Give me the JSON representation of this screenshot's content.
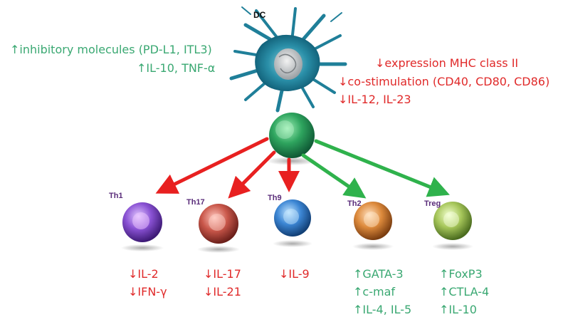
{
  "dc": {
    "label": "DC",
    "left_effects": [
      "↑inhibitory molecules (PD-L1, ITL3)",
      "↑IL-10, TNF-α"
    ],
    "right_effects": [
      "↓expression MHC class II",
      "↓co-stimulation (CD40, CD80, CD86)",
      "↓IL-12, IL-23"
    ]
  },
  "subsets": [
    {
      "name": "Th1",
      "effects": [
        "↓IL-2",
        "↓IFN-γ"
      ],
      "trend": "down"
    },
    {
      "name": "Th17",
      "effects": [
        "↓IL-17",
        "↓IL-21"
      ],
      "trend": "down"
    },
    {
      "name": "Th9",
      "effects": [
        "↓IL-9"
      ],
      "trend": "down"
    },
    {
      "name": "Th2",
      "effects": [
        "↑GATA-3",
        "↑c-maf",
        "↑IL-4, IL-5"
      ],
      "trend": "up"
    },
    {
      "name": "Treg",
      "effects": [
        "↑FoxP3",
        "↑CTLA-4",
        "↑IL-10"
      ],
      "trend": "up"
    }
  ],
  "colors": {
    "up": "#3aa872",
    "down": "#e02a2a"
  }
}
